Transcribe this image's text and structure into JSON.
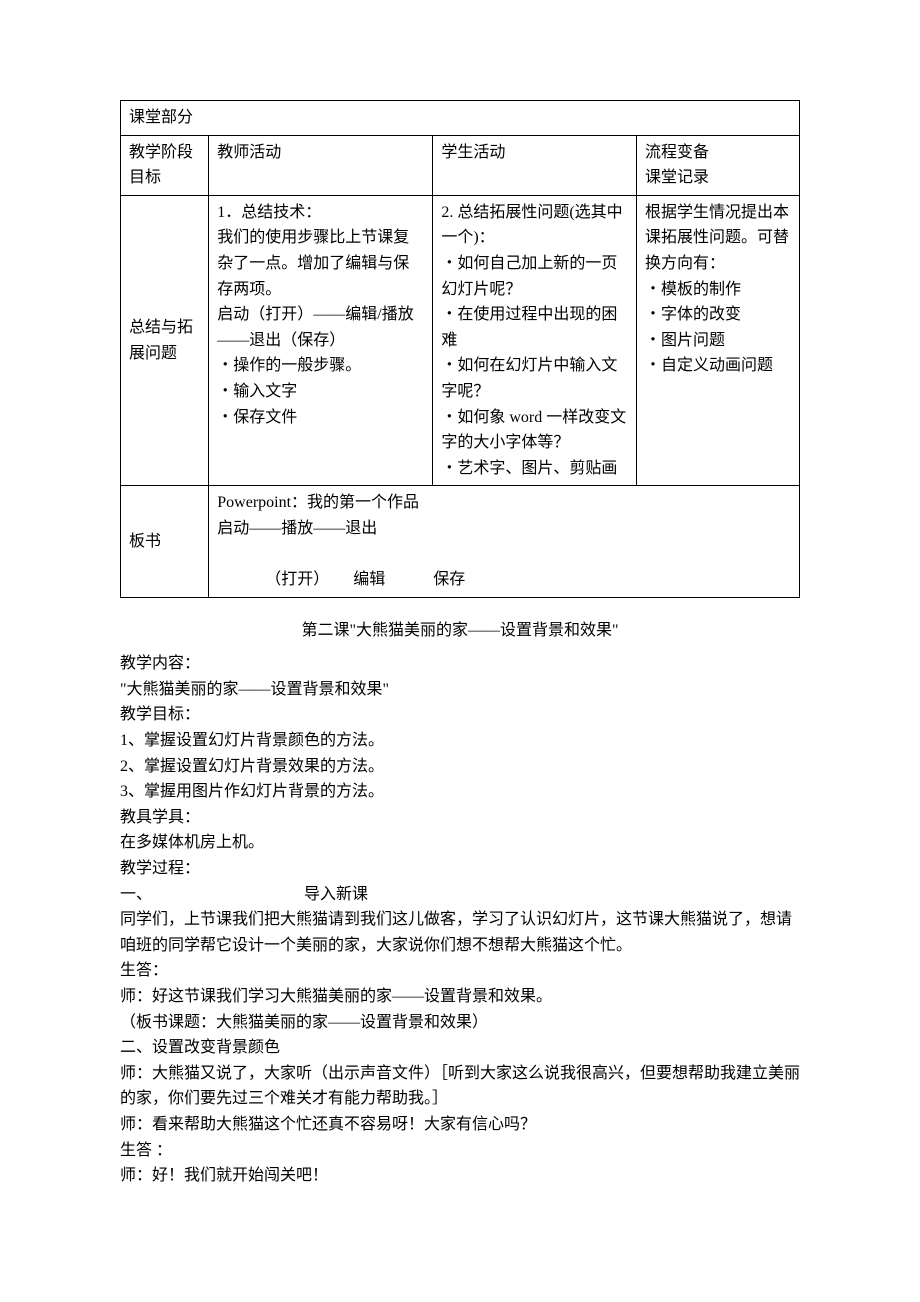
{
  "table": {
    "header_row": "课堂部分",
    "row2": {
      "c1": "教学阶段\n目标",
      "c2": "教师活动",
      "c3": "学生活动",
      "c4": "流程变备\n课堂记录"
    },
    "row3": {
      "c1": "总结与拓展问题",
      "c2": "1．总结技术：\n我们的使用步骤比上节课复杂了一点。增加了编辑与保存两项。\n启动（打开）——编辑/播放——退出（保存）\n・操作的一般步骤。\n・输入文字\n・保存文件",
      "c3": "2. 总结拓展性问题(选其中一个)：\n・如何自己加上新的一页幻灯片呢？\n・在使用过程中出现的困难\n・如何在幻灯片中输入文字呢？\n・如何象 word 一样改变文字的大小字体等？\n・艺术字、图片、剪贴画",
      "c4": "根据学生情况提出本课拓展性问题。可替换方向有：\n・模板的制作\n・字体的改变\n・图片问题\n・自定义动画问题"
    },
    "row4": {
      "c1": "板书",
      "c2": "Powerpoint：我的第一个作品\n启动——播放——退出\n\n            （打开）      编辑            保存"
    }
  },
  "section": {
    "title": "第二课\"大熊猫美丽的家——设置背景和效果\"",
    "lines": [
      "教学内容：",
      "\"大熊猫美丽的家——设置背景和效果\"",
      "教学目标：",
      "1、掌握设置幻灯片背景颜色的方法。",
      "2、掌握设置幻灯片背景效果的方法。",
      "3、掌握用图片作幻灯片背景的方法。",
      "教具学具：",
      "在多媒体机房上机。",
      "教学过程：",
      "一、                                      导入新课",
      "同学们，上节课我们把大熊猫请到我们这儿做客，学习了认识幻灯片，这节课大熊猫说了，想请咱班的同学帮它设计一个美丽的家，大家说你们想不想帮大熊猫这个忙。",
      "生答：",
      "师：好这节课我们学习大熊猫美丽的家——设置背景和效果。",
      "（板书课题：大熊猫美丽的家——设置背景和效果）",
      "二、设置改变背景颜色",
      "师：大熊猫又说了，大家听（出示声音文件）［听到大家这么说我很高兴，但要想帮助我建立美丽的家，你们要先过三个难关才有能力帮助我。］",
      "师：看来帮助大熊猫这个忙还真不容易呀！大家有信心吗？",
      "生答 ：",
      "师：好！我们就开始闯关吧！"
    ]
  }
}
